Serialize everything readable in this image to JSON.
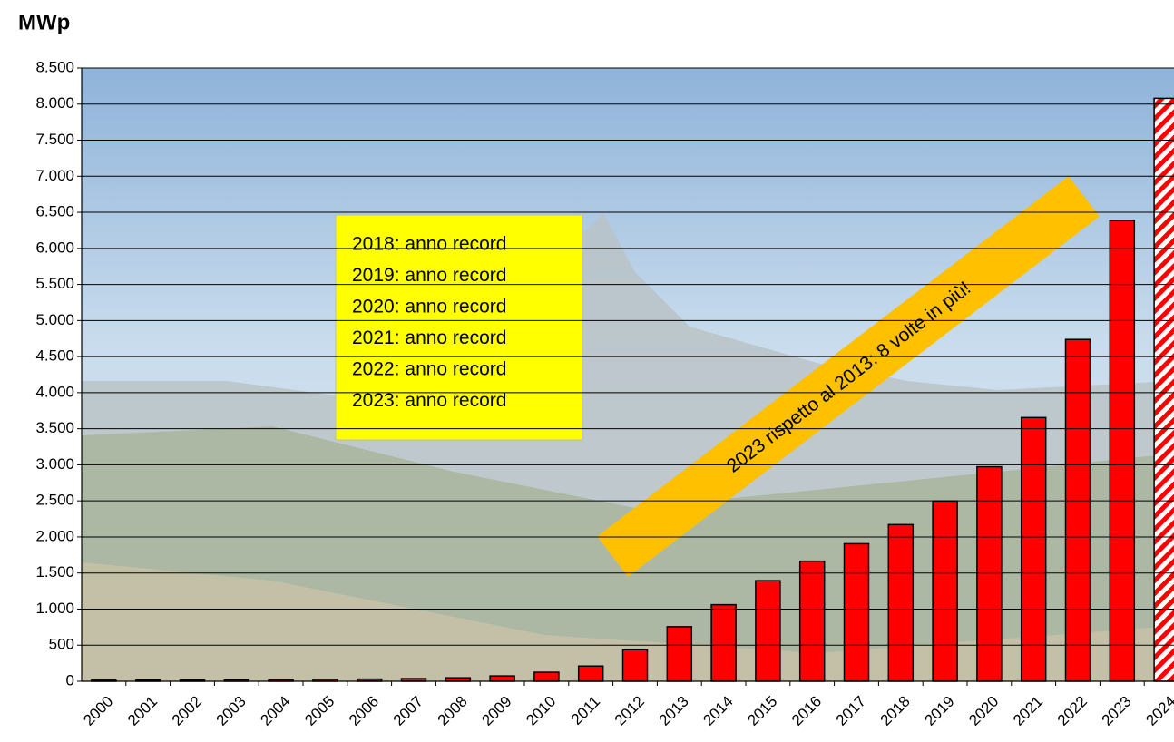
{
  "chart_data": {
    "type": "bar",
    "y_label": "MWp",
    "categories": [
      "2000",
      "2001",
      "2002",
      "2003",
      "2004",
      "2005",
      "2006",
      "2007",
      "2008",
      "2009",
      "2010",
      "2011",
      "2012",
      "2013",
      "2014",
      "2015",
      "2016",
      "2017",
      "2018",
      "2019",
      "2020",
      "2021",
      "2022",
      "2023",
      "2024"
    ],
    "values": [
      15,
      17,
      19,
      21,
      23,
      27,
      30,
      37,
      48,
      74,
      125,
      211,
      437,
      756,
      1061,
      1394,
      1664,
      1906,
      2171,
      2498,
      2973,
      3655,
      4738,
      6388,
      8080
    ],
    "color": "#ff0000",
    "hatched": [
      24
    ],
    "ylim": [
      0,
      8500
    ],
    "yticks": [
      0,
      500,
      {
        "value": 1000,
        "label": "1.000"
      },
      {
        "value": 1500,
        "label": "1.500"
      },
      {
        "value": 2000,
        "label": "2.000"
      },
      {
        "value": 2500,
        "label": "2.500"
      },
      {
        "value": 3000,
        "label": "3.000"
      },
      {
        "value": 3500,
        "label": "3.500"
      },
      {
        "value": 4000,
        "label": "4.000"
      },
      {
        "value": 4500,
        "label": "4.500"
      },
      {
        "value": 5000,
        "label": "5.000"
      },
      {
        "value": 5500,
        "label": "5.500"
      },
      {
        "value": 6000,
        "label": "6.000"
      },
      {
        "value": 6500,
        "label": "6.500"
      },
      {
        "value": 7000,
        "label": "7.000"
      },
      {
        "value": 7500,
        "label": "7.500"
      },
      {
        "value": 8000,
        "label": "8.000"
      },
      {
        "value": 8500,
        "label": "8.500"
      }
    ],
    "grid": true,
    "annotations": [
      "2018: anno record",
      "2019: anno record",
      "2020: anno record",
      "2021: anno record",
      "2022: anno record",
      "2023: anno record"
    ],
    "banner": "2023 rispetto al 2013: 8 volte in più!"
  }
}
